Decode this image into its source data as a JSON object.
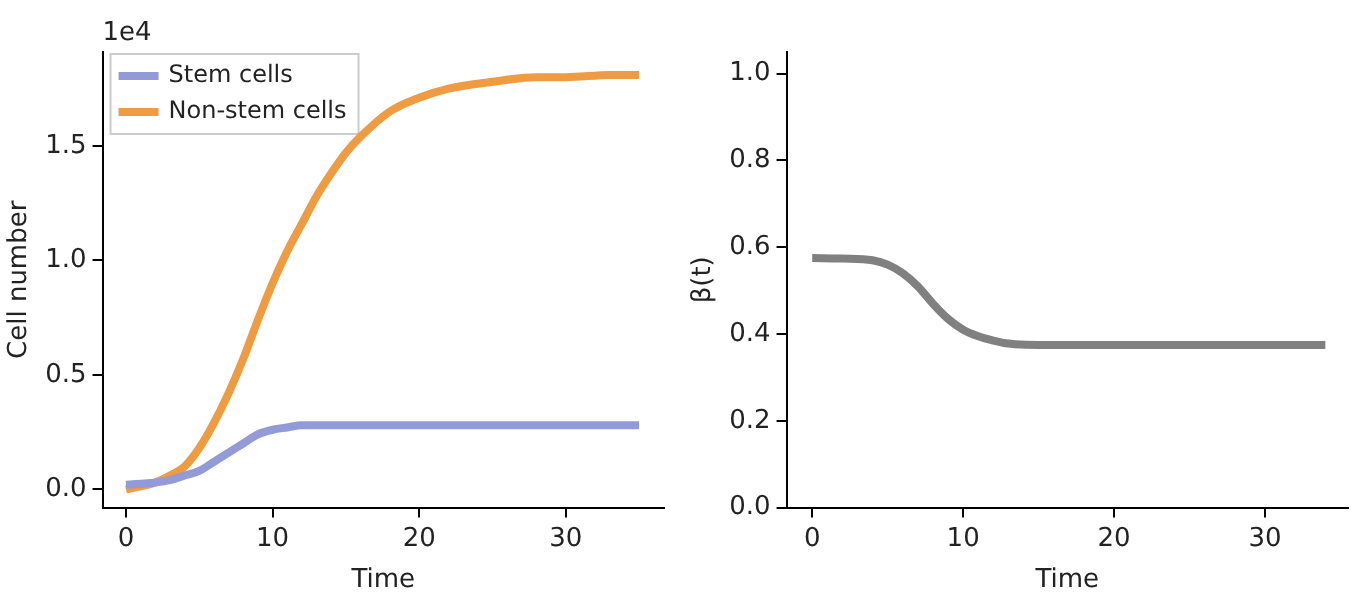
{
  "chart_data": [
    {
      "type": "line",
      "xlabel": "Time",
      "ylabel": "Cell number",
      "annotations": [
        "1e4"
      ],
      "xlim": [
        -1.6,
        36.7
      ],
      "xticks": [
        0,
        10,
        20,
        30
      ],
      "ylim": [
        -0.08,
        1.91
      ],
      "yticks": [
        {
          "value": 0,
          "label": "0.0"
        },
        {
          "value": 0.5,
          "label": "0.5"
        },
        {
          "value": 1,
          "label": "1.0"
        },
        {
          "value": 1.5,
          "label": "1.5"
        }
      ],
      "grid": false,
      "legend": "top left",
      "marker": "none",
      "line_style": "solid",
      "series": [
        {
          "name": "Stem cells",
          "color": "#929ad8",
          "x": [
            0,
            2,
            3,
            4,
            5,
            6,
            7,
            8,
            9,
            10,
            11,
            12,
            14,
            16,
            20,
            25,
            30,
            35
          ],
          "values": [
            0.02,
            0.03,
            0.04,
            0.06,
            0.08,
            0.12,
            0.16,
            0.2,
            0.24,
            0.26,
            0.27,
            0.28,
            0.28,
            0.28,
            0.28,
            0.28,
            0.28,
            0.28
          ]
        },
        {
          "name": "Non-stem cells",
          "color": "#ef9b41",
          "x": [
            0,
            2,
            3,
            4,
            5,
            6,
            7,
            8,
            9,
            10,
            11,
            12,
            13,
            14,
            15,
            16,
            18,
            20,
            22,
            25,
            28,
            30,
            33,
            35
          ],
          "values": [
            0,
            0.03,
            0.06,
            0.1,
            0.18,
            0.29,
            0.42,
            0.57,
            0.74,
            0.9,
            1.04,
            1.16,
            1.28,
            1.38,
            1.47,
            1.54,
            1.65,
            1.71,
            1.75,
            1.78,
            1.8,
            1.8,
            1.81,
            1.81
          ]
        }
      ]
    },
    {
      "type": "line",
      "xlabel": "Time",
      "ylabel": "β(t)",
      "xlim": [
        -1.7,
        35.5
      ],
      "xticks": [
        0,
        10,
        20,
        30
      ],
      "ylim": [
        0,
        1.05
      ],
      "yticks": [
        {
          "value": 0,
          "label": "0.0"
        },
        {
          "value": 0.2,
          "label": "0.2"
        },
        {
          "value": 0.4,
          "label": "0.4"
        },
        {
          "value": 0.6,
          "label": "0.6"
        },
        {
          "value": 0.8,
          "label": "0.8"
        },
        {
          "value": 1,
          "label": "1.0"
        }
      ],
      "grid": false,
      "legend": false,
      "marker": "none",
      "line_style": "solid",
      "series": [
        {
          "color": "#808080",
          "x": [
            0,
            2,
            4,
            5,
            6,
            7,
            8,
            9,
            10,
            11,
            12,
            13,
            15,
            20,
            25,
            30,
            34
          ],
          "values": [
            0.575,
            0.574,
            0.57,
            0.56,
            0.54,
            0.51,
            0.47,
            0.435,
            0.41,
            0.395,
            0.385,
            0.378,
            0.375,
            0.375,
            0.375,
            0.375,
            0.375
          ]
        }
      ]
    }
  ]
}
